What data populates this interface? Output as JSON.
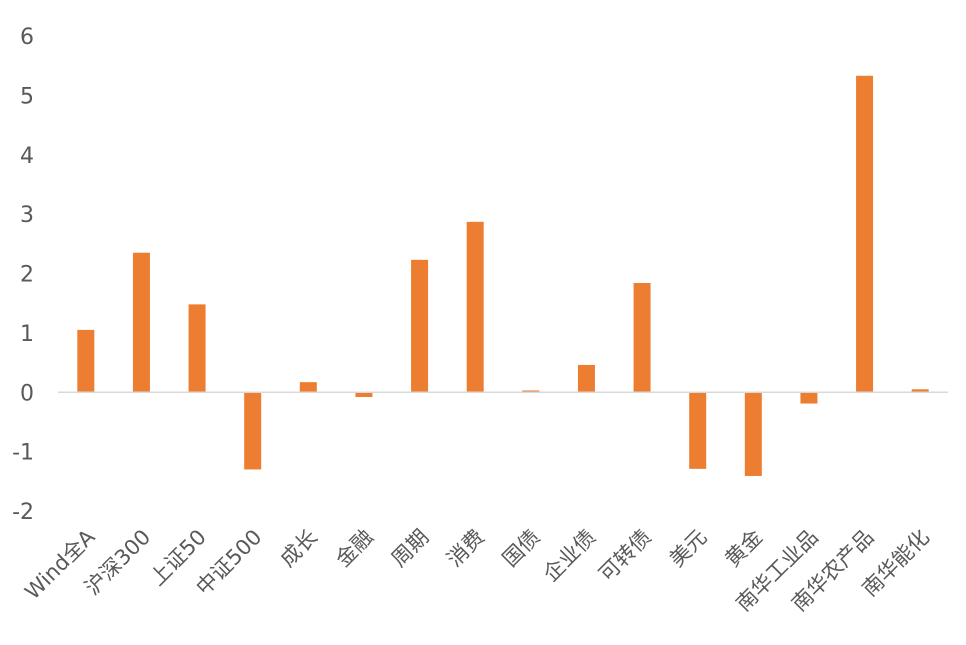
{
  "chart_data": {
    "type": "bar",
    "categories": [
      "Wind全A",
      "沪深300",
      "上证50",
      "中证500",
      "成长",
      "金融",
      "周期",
      "消费",
      "国债",
      "企业债",
      "可转债",
      "美元",
      "黄金",
      "南华工业品",
      "南华农产品",
      "南华能化"
    ],
    "values": [
      1.05,
      2.35,
      1.48,
      -1.3,
      0.17,
      -0.08,
      2.23,
      2.87,
      0.03,
      0.46,
      1.84,
      -1.29,
      -1.41,
      -0.19,
      5.33,
      0.05
    ],
    "ylim": [
      -2,
      6
    ],
    "yticks": [
      -2,
      -1,
      0,
      1,
      2,
      3,
      4,
      5,
      6
    ],
    "title": "",
    "xlabel": "",
    "ylabel": "",
    "grid": false,
    "bar_color": "#ED7D31",
    "axis_color": "#D9D9D9"
  }
}
